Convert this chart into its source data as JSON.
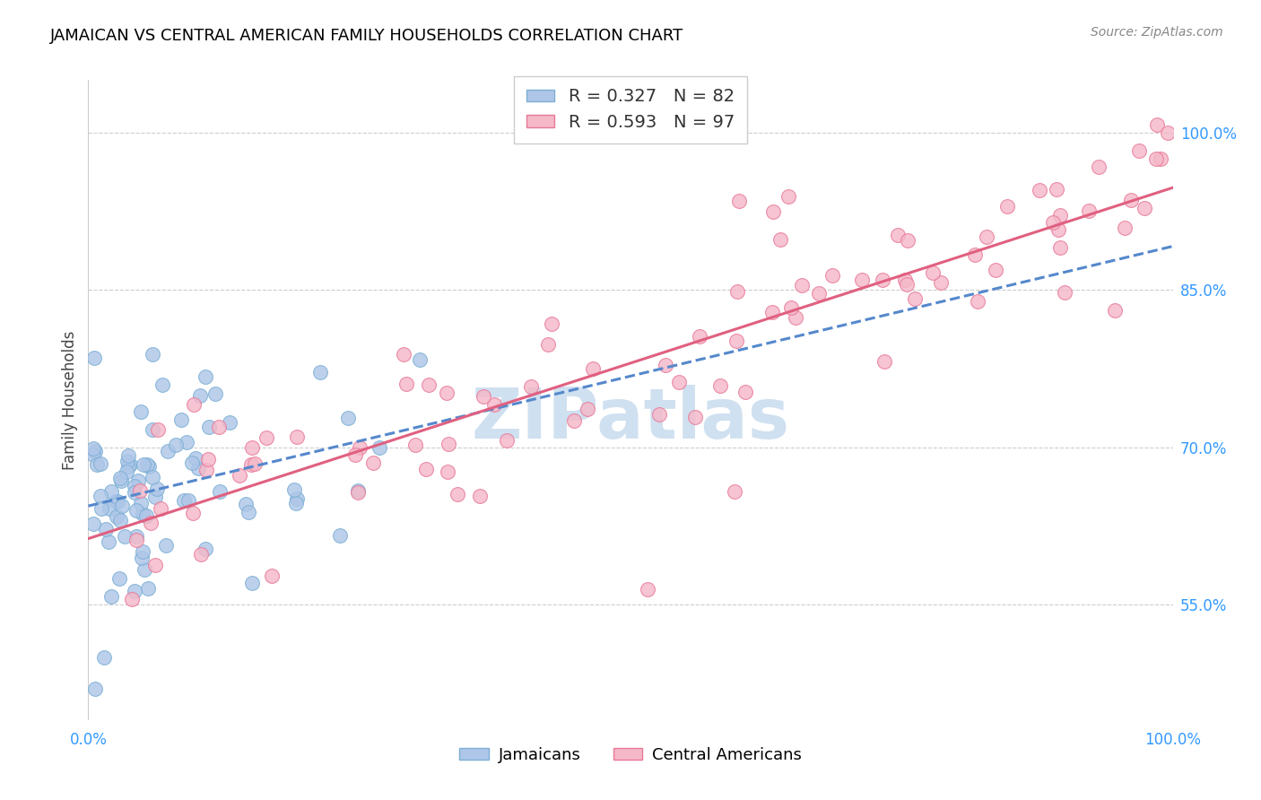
{
  "title": "JAMAICAN VS CENTRAL AMERICAN FAMILY HOUSEHOLDS CORRELATION CHART",
  "source": "Source: ZipAtlas.com",
  "ylabel": "Family Households",
  "jamaican_color": "#aec6e8",
  "jamaican_edge": "#7bafd4",
  "central_color": "#f4b8c8",
  "central_edge": "#e87898",
  "trendline_jamaican_color": "#5588cc",
  "trendline_central_color": "#e06080",
  "watermark_color": "#cfe0f0",
  "r_jamaican": 0.327,
  "n_jamaican": 82,
  "r_central": 0.593,
  "n_central": 97,
  "xlim": [
    0.0,
    1.0
  ],
  "ylim": [
    0.44,
    1.05
  ],
  "yticks": [
    0.55,
    0.7,
    0.85,
    1.0
  ],
  "ytick_labels": [
    "55.0%",
    "70.0%",
    "85.0%",
    "100.0%"
  ]
}
